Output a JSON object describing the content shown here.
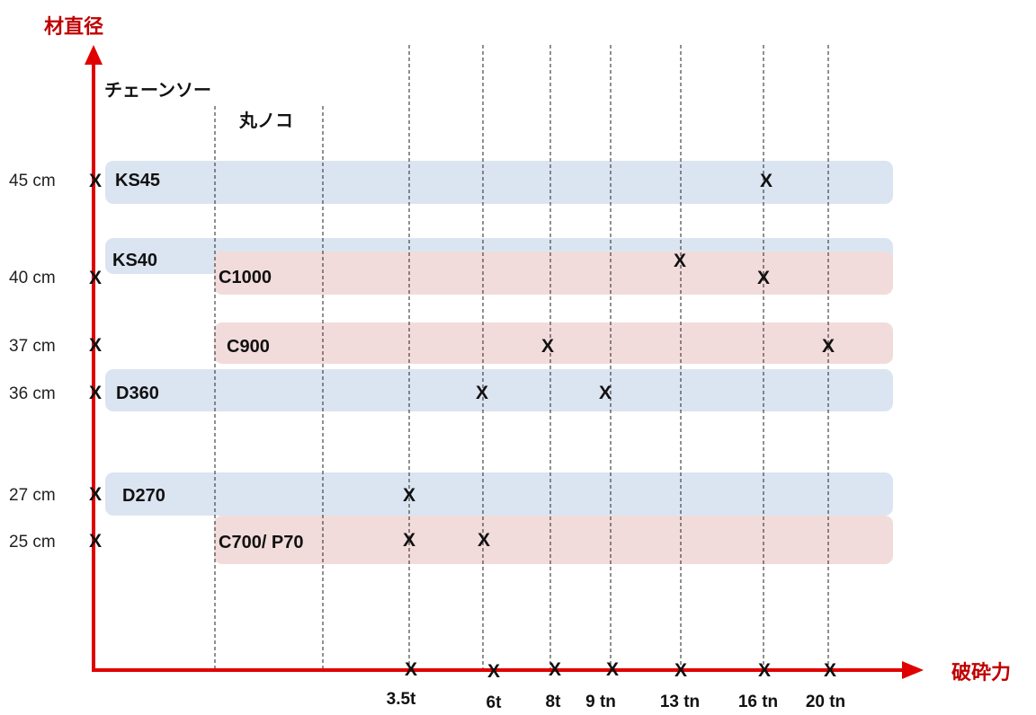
{
  "axes": {
    "y_title": "材直径",
    "x_title": "破砕力",
    "axis_color": "#e00000"
  },
  "tool_headers": {
    "chainsaw": "チェーンソー",
    "circular_saw": "丸ノコ"
  },
  "y_ticks": [
    {
      "label": "45 cm",
      "value": 45
    },
    {
      "label": "40 cm",
      "value": 40
    },
    {
      "label": "37 cm",
      "value": 37
    },
    {
      "label": "36 cm",
      "value": 36
    },
    {
      "label": "27 cm",
      "value": 27
    },
    {
      "label": "25 cm",
      "value": 25
    }
  ],
  "x_ticks": [
    {
      "label": "3.5t",
      "value": 3.5
    },
    {
      "label": "6t",
      "value": 6
    },
    {
      "label": "8t",
      "value": 8
    },
    {
      "label": "9 tn",
      "value": 9
    },
    {
      "label": "13 tn",
      "value": 13
    },
    {
      "label": "16 tn",
      "value": 16
    },
    {
      "label": "20 tn",
      "value": 20
    }
  ],
  "models": [
    {
      "name": "KS45",
      "group": "chainsaw",
      "color": "#dbe5f1",
      "diameter": 45,
      "forces": [
        16
      ]
    },
    {
      "name": "KS40",
      "group": "chainsaw",
      "color": "#dbe5f1",
      "diameter": 40,
      "forces": []
    },
    {
      "name": "C1000",
      "group": "circular_saw",
      "color": "#f2dcdb",
      "diameter": 40,
      "forces": [
        13,
        16
      ]
    },
    {
      "name": "C900",
      "group": "circular_saw",
      "color": "#f2dcdb",
      "diameter": 37,
      "forces": [
        8,
        20
      ]
    },
    {
      "name": "D360",
      "group": "chainsaw",
      "color": "#dbe5f1",
      "diameter": 36,
      "forces": [
        6,
        9
      ]
    },
    {
      "name": "D270",
      "group": "chainsaw",
      "color": "#dbe5f1",
      "diameter": 27,
      "forces": [
        3.5
      ]
    },
    {
      "name": "C700/ P70",
      "group": "circular_saw",
      "color": "#f2dcdb",
      "diameter": 25,
      "forces": [
        3.5,
        6
      ]
    }
  ],
  "marker_symbol": "X"
}
